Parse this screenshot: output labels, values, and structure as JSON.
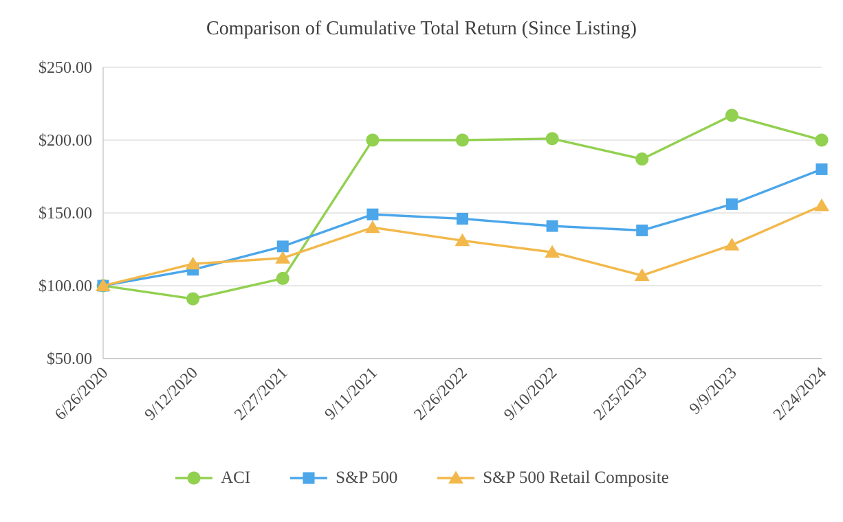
{
  "chart_data": {
    "type": "line",
    "title": "Comparison of Cumulative Total Return (Since Listing)",
    "xlabel": "",
    "ylabel": "",
    "ylim": [
      50,
      250
    ],
    "grid": true,
    "legend_position": "bottom",
    "x": [
      "6/26/2020",
      "9/12/2020",
      "2/27/2021",
      "9/11/2021",
      "2/26/2022",
      "9/10/2022",
      "2/25/2023",
      "9/9/2023",
      "2/24/2024"
    ],
    "y_ticks": [
      {
        "label": "$50.00",
        "value": 50
      },
      {
        "label": "$100.00",
        "value": 100
      },
      {
        "label": "$150.00",
        "value": 150
      },
      {
        "label": "$200.00",
        "value": 200
      },
      {
        "label": "$250.00",
        "value": 250
      }
    ],
    "series": [
      {
        "name": "ACI",
        "marker": "circle",
        "color": "#92D050",
        "values": [
          100,
          91,
          105,
          200,
          200,
          201,
          187,
          217,
          200
        ]
      },
      {
        "name": "S&P 500",
        "marker": "square",
        "color": "#4BA6EA",
        "values": [
          100,
          111,
          127,
          149,
          146,
          141,
          138,
          156,
          180
        ]
      },
      {
        "name": "S&P 500 Retail Composite",
        "marker": "triangle",
        "color": "#F2B84B",
        "values": [
          100,
          115,
          119,
          140,
          131,
          123,
          107,
          128,
          155
        ]
      }
    ]
  }
}
